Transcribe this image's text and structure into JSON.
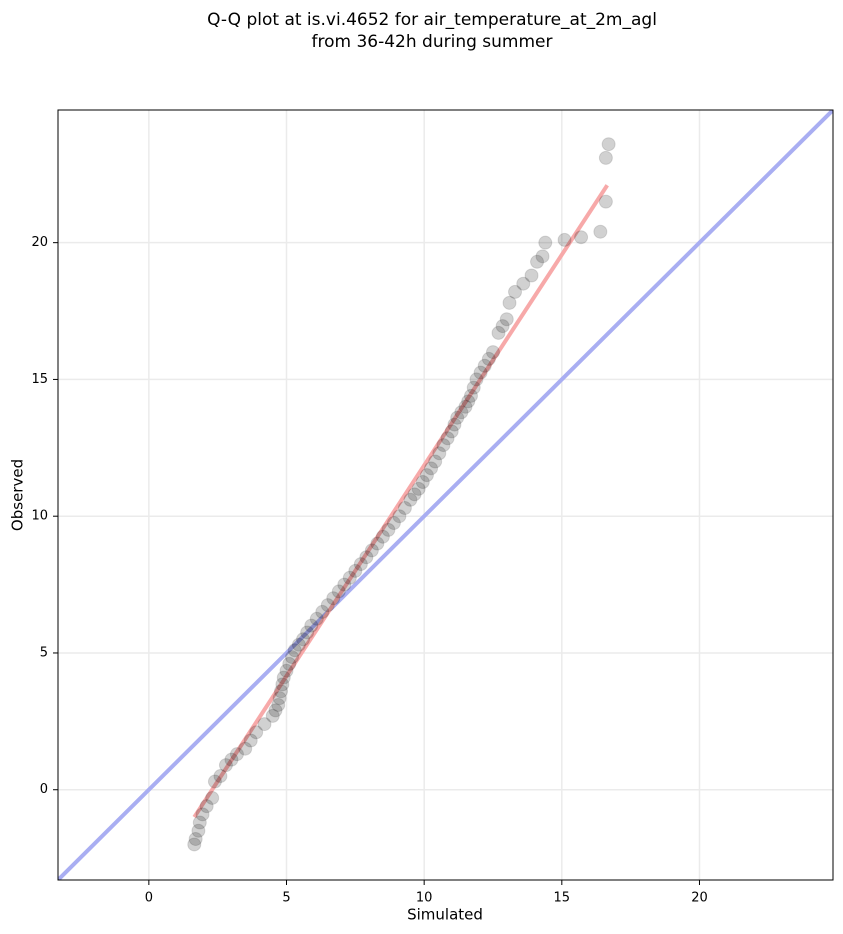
{
  "chart_data": {
    "type": "scatter",
    "title": [
      "Q-Q plot at is.vi.4652 for air_temperature_at_2m_agl",
      "from 36-42h during summer"
    ],
    "x_label": "Simulated",
    "y_label": "Observed",
    "xlim": [
      -3.3,
      24.85
    ],
    "ylim": [
      -3.3,
      24.85
    ],
    "xticks": [
      0,
      5,
      10,
      15,
      20
    ],
    "yticks": [
      0,
      5,
      10,
      15,
      20
    ],
    "grid": true,
    "point_color": "#000000",
    "x": [
      1.65,
      1.7,
      1.8,
      1.85,
      1.95,
      2.1,
      2.3,
      2.4,
      2.6,
      2.8,
      3.0,
      3.2,
      3.5,
      3.7,
      3.9,
      4.2,
      4.5,
      4.6,
      4.7,
      4.75,
      4.8,
      4.85,
      4.9,
      5.0,
      5.1,
      5.2,
      5.3,
      5.45,
      5.6,
      5.75,
      5.9,
      6.1,
      6.3,
      6.5,
      6.7,
      6.9,
      7.1,
      7.3,
      7.5,
      7.7,
      7.9,
      8.1,
      8.3,
      8.5,
      8.7,
      8.9,
      9.1,
      9.3,
      9.5,
      9.65,
      9.8,
      9.95,
      10.1,
      10.25,
      10.4,
      10.55,
      10.7,
      10.85,
      11.0,
      11.1,
      11.2,
      11.35,
      11.5,
      11.6,
      11.7,
      11.8,
      11.9,
      12.05,
      12.2,
      12.35,
      12.5,
      12.7,
      12.85,
      13.0,
      13.1,
      13.3,
      13.6,
      13.9,
      14.1,
      14.3,
      14.4,
      15.1,
      15.7,
      16.4,
      16.6,
      16.6,
      16.7
    ],
    "y": [
      -2.0,
      -1.8,
      -1.5,
      -1.2,
      -0.9,
      -0.6,
      -0.3,
      0.3,
      0.5,
      0.9,
      1.1,
      1.3,
      1.5,
      1.8,
      2.1,
      2.4,
      2.7,
      2.9,
      3.1,
      3.35,
      3.6,
      3.85,
      4.1,
      4.35,
      4.6,
      4.85,
      5.1,
      5.3,
      5.5,
      5.75,
      6.0,
      6.25,
      6.5,
      6.75,
      7.0,
      7.25,
      7.5,
      7.75,
      8.0,
      8.25,
      8.5,
      8.75,
      9.0,
      9.25,
      9.5,
      9.75,
      10.0,
      10.3,
      10.6,
      10.8,
      11.0,
      11.25,
      11.5,
      11.75,
      12.0,
      12.3,
      12.6,
      12.85,
      13.1,
      13.35,
      13.6,
      13.8,
      14.0,
      14.2,
      14.4,
      14.7,
      15.0,
      15.25,
      15.5,
      15.75,
      16.0,
      16.7,
      16.95,
      17.2,
      17.8,
      18.2,
      18.5,
      18.8,
      19.3,
      19.5,
      20.0,
      20.1,
      20.2,
      20.4,
      21.5,
      23.1,
      23.6
    ],
    "lines": [
      {
        "color": "#a9aef2",
        "x": [
          -3.3,
          24.85
        ],
        "y": [
          -3.3,
          24.85
        ]
      },
      {
        "color": "#f7a9a9",
        "x": [
          1.65,
          16.65
        ],
        "y": [
          -1.0,
          22.1
        ]
      }
    ]
  }
}
